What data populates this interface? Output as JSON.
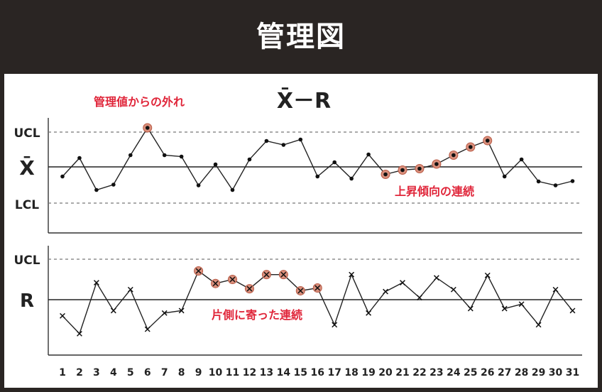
{
  "header": {
    "title": "管理図"
  },
  "chart_data": {
    "type": "line",
    "chart_title": "X̄－R",
    "x": [
      1,
      2,
      3,
      4,
      5,
      6,
      7,
      8,
      9,
      10,
      11,
      12,
      13,
      14,
      15,
      16,
      17,
      18,
      19,
      20,
      21,
      22,
      23,
      24,
      25,
      26,
      27,
      28,
      29,
      30,
      31
    ],
    "grid": false,
    "xbar_chart": {
      "center_label": "X̄",
      "ucl_label": "UCL",
      "lcl_label": "LCL",
      "scale": {
        "lcl": -1,
        "center": 0,
        "ucl": 1
      },
      "values": [
        -0.27,
        0.25,
        -0.65,
        -0.5,
        0.33,
        1.1,
        0.33,
        0.29,
        -0.52,
        0.07,
        -0.65,
        0.21,
        0.73,
        0.62,
        0.77,
        -0.27,
        0.13,
        -0.33,
        0.35,
        -0.21,
        -0.09,
        -0.05,
        0.08,
        0.33,
        0.56,
        0.74,
        -0.27,
        0.21,
        -0.41,
        -0.52,
        -0.4
      ],
      "highlight_points": [
        6,
        20,
        21,
        22,
        23,
        24,
        25,
        26
      ],
      "annotations": [
        {
          "text": "管理値からの外れ",
          "near_x": 6
        },
        {
          "text": "上昇傾向の連続",
          "near_x": 24
        }
      ]
    },
    "r_chart": {
      "center_label": "R",
      "ucl_label": "UCL",
      "scale": {
        "center": 0,
        "ucl": 1
      },
      "values": [
        -0.4,
        -0.84,
        0.42,
        -0.27,
        0.25,
        -0.73,
        -0.33,
        -0.27,
        0.71,
        0.4,
        0.5,
        0.27,
        0.62,
        0.62,
        0.22,
        0.29,
        -0.62,
        0.62,
        -0.33,
        0.2,
        0.42,
        0.05,
        0.54,
        0.25,
        -0.22,
        0.6,
        -0.22,
        -0.11,
        -0.62,
        0.25,
        -0.27
      ],
      "highlight_points": [
        9,
        10,
        11,
        12,
        13,
        14,
        15,
        16
      ],
      "annotations": [
        {
          "text": "片側に寄った連続",
          "near_x": 12
        }
      ]
    }
  }
}
